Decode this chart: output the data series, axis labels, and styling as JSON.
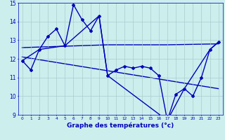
{
  "xlabel": "Graphe des températures (°c)",
  "background_color": "#cceeed",
  "grid_color": "#aacccc",
  "line_color": "#0000bb",
  "xlim": [
    -0.5,
    23.5
  ],
  "ylim": [
    9,
    15
  ],
  "yticks": [
    9,
    10,
    11,
    12,
    13,
    14,
    15
  ],
  "xticks": [
    0,
    1,
    2,
    3,
    4,
    5,
    6,
    7,
    8,
    9,
    10,
    11,
    12,
    13,
    14,
    15,
    16,
    17,
    18,
    19,
    20,
    21,
    22,
    23
  ],
  "series1_x": [
    0,
    1,
    2,
    3,
    4,
    5,
    6,
    7,
    8,
    9,
    10,
    11,
    12,
    13,
    14,
    15,
    16,
    17,
    18,
    19,
    20,
    21,
    22,
    23
  ],
  "series1_y": [
    11.9,
    11.4,
    12.5,
    13.2,
    13.6,
    12.7,
    14.9,
    14.1,
    13.5,
    14.3,
    11.1,
    11.4,
    11.6,
    11.5,
    11.6,
    11.5,
    11.1,
    8.7,
    10.1,
    10.4,
    10.0,
    11.0,
    12.5,
    12.9
  ],
  "series2_x": [
    0,
    2,
    5,
    9,
    10,
    17,
    19,
    22,
    23
  ],
  "series2_y": [
    11.9,
    12.5,
    12.7,
    14.3,
    11.1,
    8.7,
    10.4,
    12.5,
    12.9
  ],
  "trend1_x": [
    0,
    10,
    17,
    23
  ],
  "trend1_y": [
    12.6,
    12.75,
    12.75,
    12.8
  ],
  "trend2_x": [
    0,
    23
  ],
  "trend2_y": [
    12.1,
    10.4
  ]
}
